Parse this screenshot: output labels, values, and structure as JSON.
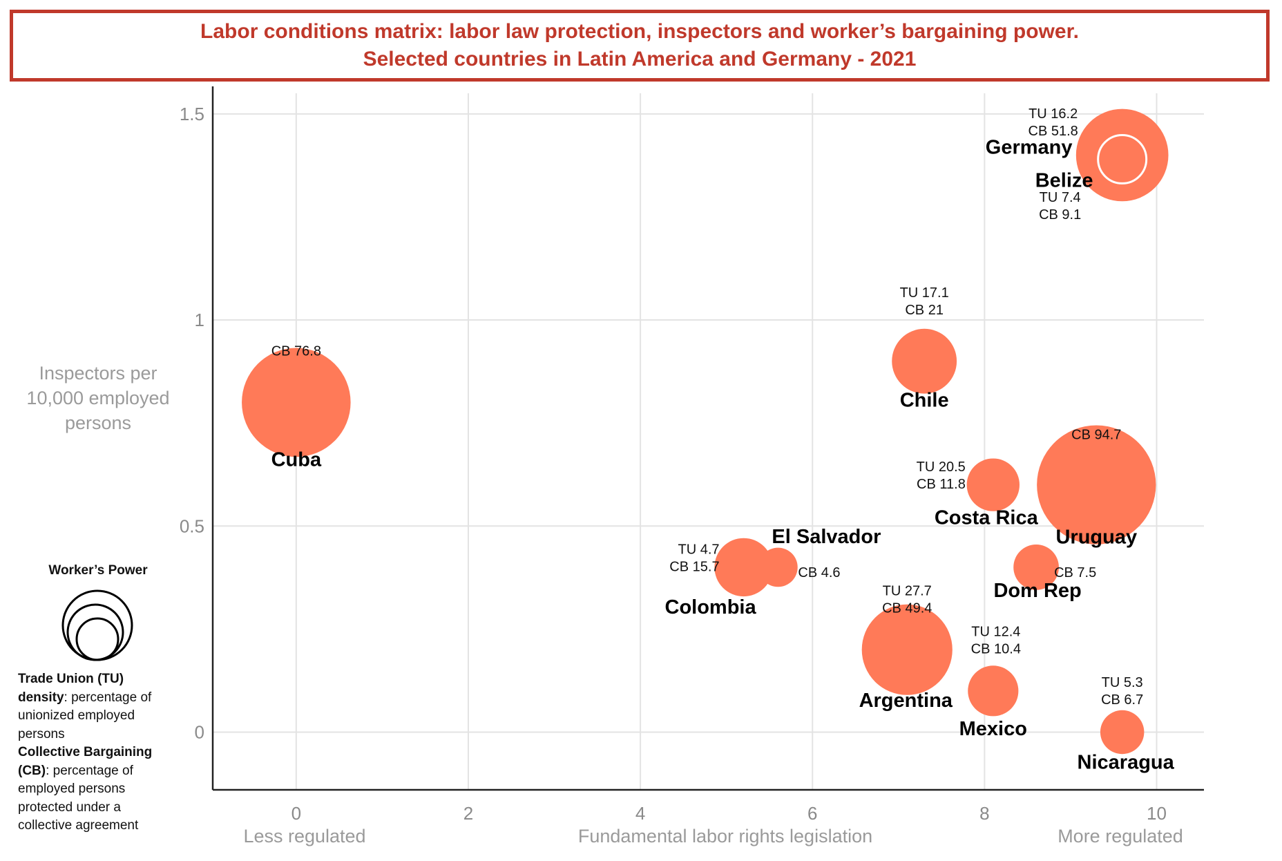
{
  "title": {
    "line1": "Labor conditions matrix: labor law protection, inspectors and worker’s bargaining power.",
    "line2": "Selected countries in Latin America and Germany - 2021"
  },
  "colors": {
    "bubble": "#ff7a58",
    "title": "#c0392b",
    "grid": "#e3e3e3",
    "axis_text": "#8a8a8a"
  },
  "legend": {
    "title": "Worker’s Power",
    "tu_term": "Trade Union (TU) density",
    "tu_desc": ": percentage of unionized employed persons",
    "cb_term": "Collective Bargaining (CB)",
    "cb_desc": ": percentage of employed persons protected under a collective agreement"
  },
  "chart_data": {
    "type": "scatter",
    "title": "Labor conditions matrix: labor law protection, inspectors and worker’s bargaining power. Selected countries in Latin America and Germany - 2021",
    "xlabel": "Fundamental labor rights legislation",
    "xlabel_left": "Less regulated",
    "xlabel_right": "More regulated",
    "ylabel": "Inspectors per 10,000 employed persons",
    "xlim": [
      -0.97,
      10.55
    ],
    "ylim": [
      -0.14,
      1.55
    ],
    "xticks": [
      0,
      2,
      4,
      6,
      8,
      10
    ],
    "yticks": [
      0,
      0.5,
      1,
      1.5
    ],
    "ytick_labels": [
      "0",
      "0.5",
      "1",
      "1.5"
    ],
    "grid": true,
    "size_encoding": "Worker’s Power (collective bargaining coverage)",
    "points": [
      {
        "country": "Cuba",
        "x": 0,
        "y": 0.8,
        "tu": null,
        "cb": 76.8,
        "label": "Cuba",
        "annotation": [
          "CB 76.8"
        ]
      },
      {
        "country": "Chile",
        "x": 7.3,
        "y": 0.9,
        "tu": 17.1,
        "cb": 21,
        "label": "Chile",
        "annotation": [
          "TU 17.1",
          "CB 21"
        ]
      },
      {
        "country": "Germany",
        "x": 9.6,
        "y": 1.4,
        "tu": 16.2,
        "cb": 51.8,
        "label": "Germany",
        "annotation": [
          "TU 16.2",
          "CB 51.8"
        ]
      },
      {
        "country": "Belize",
        "x": 9.6,
        "y": 1.39,
        "tu": 7.4,
        "cb": 9.1,
        "label": "Belize",
        "annotation": [
          "TU 7.4",
          "CB 9.1"
        ]
      },
      {
        "country": "Costa Rica",
        "x": 8.1,
        "y": 0.6,
        "tu": 20.5,
        "cb": 11.8,
        "label": "Costa Rica",
        "annotation": [
          "TU 20.5",
          "CB 11.8"
        ]
      },
      {
        "country": "Uruguay",
        "x": 9.3,
        "y": 0.6,
        "tu": null,
        "cb": 94.7,
        "label": "Uruguay",
        "annotation": [
          "CB 94.7"
        ]
      },
      {
        "country": "Colombia",
        "x": 5.2,
        "y": 0.4,
        "tu": 4.7,
        "cb": 15.7,
        "label": "Colombia",
        "annotation": [
          "TU 4.7",
          "CB 15.7"
        ]
      },
      {
        "country": "El Salvador",
        "x": 5.6,
        "y": 0.4,
        "tu": null,
        "cb": 4.6,
        "label": "El Salvador",
        "annotation": [
          "CB 4.6"
        ]
      },
      {
        "country": "Dom Rep",
        "x": 8.6,
        "y": 0.4,
        "tu": null,
        "cb": 7.5,
        "label": "Dom Rep",
        "annotation": [
          "CB 7.5"
        ]
      },
      {
        "country": "Argentina",
        "x": 7.1,
        "y": 0.2,
        "tu": 27.7,
        "cb": 49.4,
        "label": "Argentina",
        "annotation": [
          "TU 27.7",
          "CB 49.4"
        ]
      },
      {
        "country": "Mexico",
        "x": 8.1,
        "y": 0.1,
        "tu": 12.4,
        "cb": 10.4,
        "label": "Mexico",
        "annotation": [
          "TU 12.4",
          "CB 10.4"
        ]
      },
      {
        "country": "Nicaragua",
        "x": 9.6,
        "y": 0,
        "tu": 5.3,
        "cb": 6.7,
        "label": "Nicaragua",
        "annotation": [
          "TU 5.3",
          "CB 6.7"
        ]
      }
    ]
  }
}
